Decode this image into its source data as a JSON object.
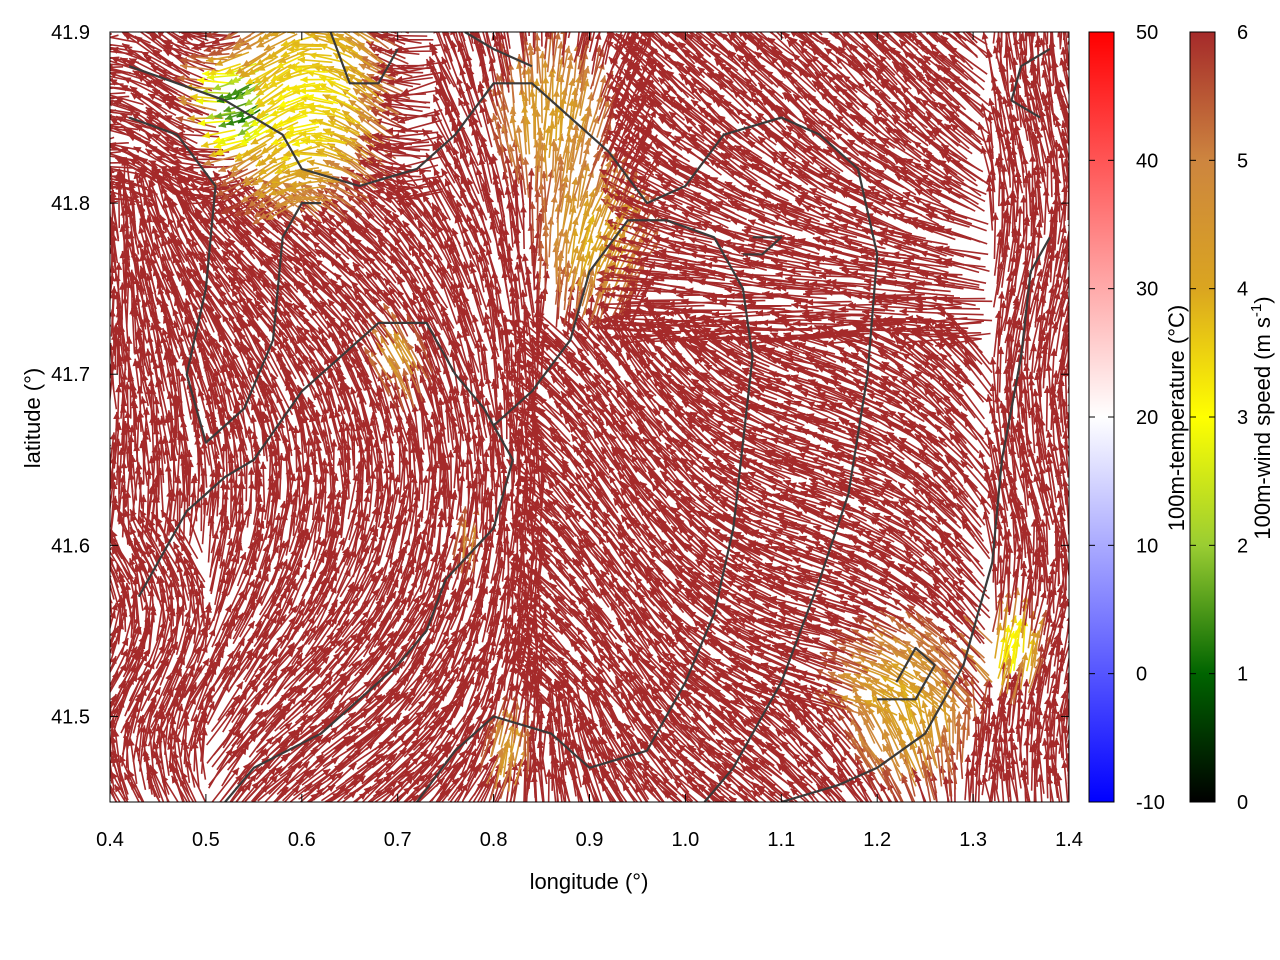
{
  "chart_data": {
    "type": "vector-field",
    "xlabel": "longitude (°)",
    "ylabel": "latitude (°)",
    "xlim": [
      0.4,
      1.4
    ],
    "ylim": [
      41.45,
      41.9
    ],
    "xticks": [
      "0.4",
      "0.5",
      "0.6",
      "0.7",
      "0.8",
      "0.9",
      "1.0",
      "1.1",
      "1.2",
      "1.3",
      "1.4"
    ],
    "yticks": [
      "41.5",
      "41.6",
      "41.7",
      "41.8",
      "41.9"
    ],
    "grid": false,
    "legend": "none",
    "background_fill": "none",
    "colorbars": [
      {
        "label": "100m-temperature (°C)",
        "range": [
          -10,
          50
        ],
        "ticks": [
          "-10",
          "0",
          "10",
          "20",
          "30",
          "40",
          "50"
        ],
        "colors": [
          "#0000ff",
          "#ffffff",
          "#ff0000"
        ]
      },
      {
        "label": "100m-wind speed (m s-1)",
        "label_main": "100m-wind speed (m s",
        "label_sup": "-1",
        "label_end": ")",
        "range": [
          0,
          6
        ],
        "ticks": [
          "0",
          "1",
          "2",
          "3",
          "4",
          "5",
          "6"
        ],
        "colors": [
          "#000000",
          "#006400",
          "#9acd32",
          "#ffff00",
          "#daa520",
          "#cd853f",
          "#a52a2a"
        ]
      }
    ],
    "arrows": {
      "dominant_color": "#a52a2a",
      "saturated_speed": 6,
      "description": "100 m wind vectors, mostly >= 6 m/s (brown); slower yellow/green vectors concentrated near the top-left and bottom-right"
    },
    "contour_lines": {
      "color": "#3a3a3a",
      "lines": [
        [
          [
            0.42,
            41.88
          ],
          [
            0.52,
            41.86
          ],
          [
            0.58,
            41.84
          ],
          [
            0.6,
            41.82
          ],
          [
            0.66,
            41.81
          ],
          [
            0.72,
            41.82
          ],
          [
            0.76,
            41.84
          ],
          [
            0.8,
            41.87
          ],
          [
            0.84,
            41.87
          ],
          [
            0.88,
            41.85
          ],
          [
            0.92,
            41.83
          ],
          [
            0.96,
            41.8
          ],
          [
            1.0,
            41.81
          ],
          [
            1.04,
            41.84
          ],
          [
            1.1,
            41.85
          ],
          [
            1.14,
            41.84
          ],
          [
            1.18,
            41.82
          ],
          [
            1.2,
            41.77
          ],
          [
            1.19,
            41.7
          ],
          [
            1.17,
            41.63
          ],
          [
            1.14,
            41.58
          ],
          [
            1.1,
            41.52
          ],
          [
            1.05,
            41.47
          ],
          [
            1.02,
            41.45
          ]
        ],
        [
          [
            0.42,
            41.85
          ],
          [
            0.47,
            41.84
          ],
          [
            0.51,
            41.81
          ],
          [
            0.5,
            41.75
          ],
          [
            0.48,
            41.7
          ],
          [
            0.5,
            41.66
          ],
          [
            0.54,
            41.68
          ],
          [
            0.57,
            41.72
          ],
          [
            0.58,
            41.78
          ],
          [
            0.6,
            41.8
          ],
          [
            0.62,
            41.8
          ]
        ],
        [
          [
            0.43,
            41.57
          ],
          [
            0.48,
            41.62
          ],
          [
            0.52,
            41.64
          ],
          [
            0.55,
            41.65
          ],
          [
            0.6,
            41.69
          ],
          [
            0.68,
            41.73
          ],
          [
            0.73,
            41.73
          ],
          [
            0.76,
            41.7
          ],
          [
            0.79,
            41.68
          ],
          [
            0.82,
            41.65
          ],
          [
            0.8,
            41.61
          ],
          [
            0.75,
            41.58
          ],
          [
            0.73,
            41.55
          ],
          [
            0.7,
            41.53
          ],
          [
            0.66,
            41.51
          ],
          [
            0.62,
            41.49
          ],
          [
            0.55,
            41.47
          ],
          [
            0.52,
            41.45
          ]
        ],
        [
          [
            0.72,
            41.45
          ],
          [
            0.76,
            41.48
          ],
          [
            0.8,
            41.5
          ],
          [
            0.86,
            41.49
          ],
          [
            0.9,
            41.47
          ],
          [
            0.96,
            41.48
          ],
          [
            1.0,
            41.52
          ],
          [
            1.03,
            41.56
          ],
          [
            1.05,
            41.61
          ],
          [
            1.06,
            41.66
          ],
          [
            1.07,
            41.71
          ],
          [
            1.06,
            41.75
          ],
          [
            1.03,
            41.78
          ],
          [
            0.98,
            41.79
          ],
          [
            0.94,
            41.79
          ],
          [
            0.9,
            41.76
          ],
          [
            0.88,
            41.72
          ],
          [
            0.84,
            41.69
          ],
          [
            0.8,
            41.67
          ]
        ],
        [
          [
            1.1,
            41.45
          ],
          [
            1.16,
            41.46
          ],
          [
            1.2,
            41.47
          ],
          [
            1.25,
            41.49
          ],
          [
            1.29,
            41.53
          ],
          [
            1.32,
            41.59
          ],
          [
            1.33,
            41.65
          ],
          [
            1.35,
            41.71
          ],
          [
            1.36,
            41.76
          ],
          [
            1.38,
            41.78
          ]
        ],
        [
          [
            1.2,
            41.51
          ],
          [
            1.24,
            41.51
          ],
          [
            1.26,
            41.53
          ],
          [
            1.24,
            41.54
          ],
          [
            1.22,
            41.52
          ]
        ],
        [
          [
            1.06,
            41.77
          ],
          [
            1.08,
            41.77
          ],
          [
            1.1,
            41.78
          ],
          [
            1.07,
            41.78
          ]
        ],
        [
          [
            1.38,
            41.89
          ],
          [
            1.35,
            41.88
          ],
          [
            1.34,
            41.86
          ],
          [
            1.37,
            41.85
          ]
        ],
        [
          [
            0.63,
            41.9
          ],
          [
            0.65,
            41.87
          ],
          [
            0.68,
            41.87
          ],
          [
            0.7,
            41.89
          ]
        ],
        [
          [
            0.77,
            41.9
          ],
          [
            0.8,
            41.89
          ],
          [
            0.84,
            41.88
          ]
        ]
      ]
    }
  }
}
